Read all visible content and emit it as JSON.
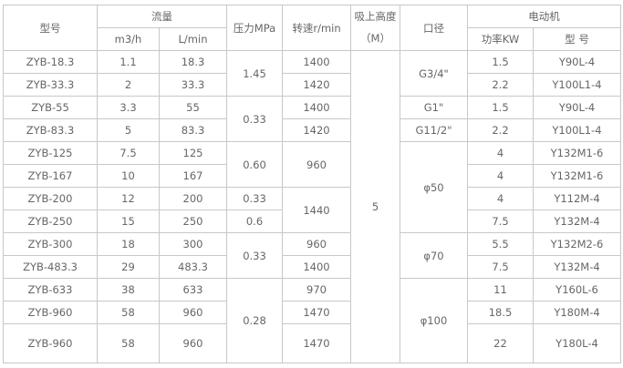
{
  "header": {
    "model": "型号",
    "flow": "流量",
    "flow_m3h": "m3/h",
    "flow_lmin": "L/min",
    "pressure": "压力MPa",
    "speed": "转速r/min",
    "suction_height": "吸上高度",
    "suction_unit": "（M）",
    "diameter": "口径",
    "motor": "电动机",
    "power": "功率KW",
    "motor_model": "型 号"
  },
  "rows": [
    [
      {
        "v": "ZYB-18.3"
      },
      {
        "v": "1.1"
      },
      {
        "v": "18.3"
      },
      {
        "v": "1.45",
        "span": 2
      },
      {
        "v": "1400"
      },
      {
        "v": "5",
        "span": 13
      },
      {
        "v": "G3/4\"",
        "span": 2
      },
      {
        "v": "1.5"
      },
      {
        "v": "Y90L-4"
      }
    ],
    [
      {
        "v": "ZYB-33.3"
      },
      {
        "v": "2"
      },
      {
        "v": "33.3"
      },
      {
        "v": "1420"
      },
      {
        "v": "2.2"
      },
      {
        "v": "Y100L1-4"
      }
    ],
    [
      {
        "v": "ZYB-55"
      },
      {
        "v": "3.3"
      },
      {
        "v": "55"
      },
      {
        "v": "0.33",
        "span": 2
      },
      {
        "v": "1400"
      },
      {
        "v": "G1\""
      },
      {
        "v": "1.5"
      },
      {
        "v": "Y90L-4"
      }
    ],
    [
      {
        "v": "ZYB-83.3"
      },
      {
        "v": "5"
      },
      {
        "v": "83.3"
      },
      {
        "v": "1420"
      },
      {
        "v": "G11/2\""
      },
      {
        "v": "2.2"
      },
      {
        "v": "Y100L1-4"
      }
    ],
    [
      {
        "v": "ZYB-125"
      },
      {
        "v": "7.5"
      },
      {
        "v": "125"
      },
      {
        "v": "0.60",
        "span": 2
      },
      {
        "v": "960",
        "span": 2
      },
      {
        "v": "φ50",
        "span": 4
      },
      {
        "v": "4"
      },
      {
        "v": "Y132M1-6"
      }
    ],
    [
      {
        "v": "ZYB-167"
      },
      {
        "v": "10"
      },
      {
        "v": "167"
      },
      {
        "v": "4"
      },
      {
        "v": "Y132M1-6"
      }
    ],
    [
      {
        "v": "ZYB-200"
      },
      {
        "v": "12"
      },
      {
        "v": "200"
      },
      {
        "v": "0.33"
      },
      {
        "v": "1440",
        "span": 2
      },
      {
        "v": "4"
      },
      {
        "v": "Y112M-4"
      }
    ],
    [
      {
        "v": "ZYB-250"
      },
      {
        "v": "15"
      },
      {
        "v": "250"
      },
      {
        "v": "0.6"
      },
      {
        "v": "7.5"
      },
      {
        "v": "Y132M-4"
      }
    ],
    [
      {
        "v": "ZYB-300"
      },
      {
        "v": "18"
      },
      {
        "v": "300"
      },
      {
        "v": "0.33",
        "span": 2
      },
      {
        "v": "960"
      },
      {
        "v": "φ70",
        "span": 2
      },
      {
        "v": "5.5"
      },
      {
        "v": "Y132M2-6"
      }
    ],
    [
      {
        "v": "ZYB-483.3"
      },
      {
        "v": "29"
      },
      {
        "v": "483.3"
      },
      {
        "v": "1400"
      },
      {
        "v": "7.5"
      },
      {
        "v": "Y132M-4"
      }
    ],
    [
      {
        "v": "ZYB-633"
      },
      {
        "v": "38"
      },
      {
        "v": "633"
      },
      {
        "v": "0.28",
        "span": 3
      },
      {
        "v": "970"
      },
      {
        "v": "φ100",
        "span": 3
      },
      {
        "v": "11"
      },
      {
        "v": "Y160L-6"
      }
    ],
    [
      {
        "v": "ZYB-960"
      },
      {
        "v": "58"
      },
      {
        "v": "960"
      },
      {
        "v": "1470"
      },
      {
        "v": "18.5"
      },
      {
        "v": "Y180M-4"
      }
    ],
    [
      {
        "v": "ZYB-960"
      },
      {
        "v": "58"
      },
      {
        "v": "960"
      },
      {
        "v": "1470"
      },
      {
        "v": "22"
      },
      {
        "v": "Y180L-4"
      }
    ]
  ]
}
